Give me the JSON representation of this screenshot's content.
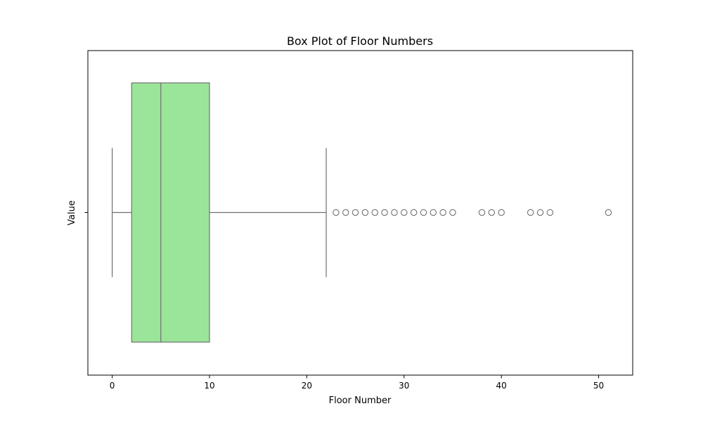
{
  "chart_data": {
    "type": "box",
    "orientation": "horizontal",
    "title": "Box Plot of Floor Numbers",
    "xlabel": "Floor Number",
    "ylabel": "Value",
    "xlim": [
      -2.5,
      53.5
    ],
    "xticks": [
      0,
      10,
      20,
      30,
      40,
      50
    ],
    "ytick_labels": [
      ""
    ],
    "grid": false,
    "series": [
      {
        "whisker_low": 0,
        "q1": 2,
        "median": 5,
        "q3": 10,
        "whisker_high": 22,
        "outliers": [
          23,
          24,
          25,
          26,
          27,
          28,
          29,
          30,
          31,
          32,
          33,
          34,
          35,
          38,
          39,
          40,
          43,
          44,
          45,
          51
        ]
      }
    ],
    "colors": {
      "box_fill": "#9be59b",
      "box_edge": "#707070",
      "axes_edge": "#000000"
    }
  }
}
